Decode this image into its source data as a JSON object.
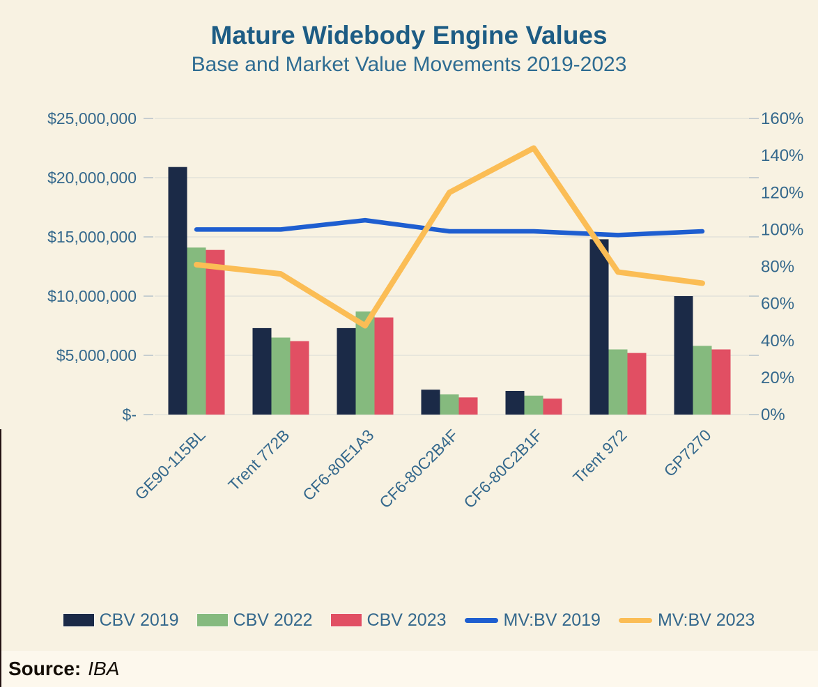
{
  "header": {
    "title": "Mature Widebody Engine Values",
    "subtitle": "Base and Market Value Movements 2019-2023"
  },
  "source": {
    "label": "Source:",
    "value": "IBA"
  },
  "colors": {
    "background": "#f8f2e2",
    "source_strip": "#fdf8ed",
    "title": "#1d5c84",
    "axis_text": "#34688c",
    "gridline": "#e3e2da",
    "cbv_2019": "#1b2a47",
    "cbv_2022": "#85ba7e",
    "cbv_2023": "#e14f63",
    "mvbv_2019": "#1e5ed0",
    "mvbv_2023": "#fbbd55"
  },
  "legend": {
    "items": [
      {
        "label": "CBV 2019",
        "swatch": "bar",
        "color": "#1b2a47"
      },
      {
        "label": "CBV 2022",
        "swatch": "bar",
        "color": "#85ba7e"
      },
      {
        "label": "CBV 2023",
        "swatch": "bar",
        "color": "#e14f63"
      },
      {
        "label": "MV:BV 2019",
        "swatch": "line",
        "color": "#1e5ed0"
      },
      {
        "label": "MV:BV 2023",
        "swatch": "line",
        "color": "#fbbd55"
      }
    ]
  },
  "chart_data": {
    "type": "bar",
    "subtype": "grouped-bars-with-lines",
    "title": "Mature Widebody Engine Values",
    "subtitle": "Base and Market Value Movements 2019-2023",
    "categories": [
      "GE90-115BL",
      "Trent 772B",
      "CF6-80E1A3",
      "CF6-80C2B4F",
      "CF6-80C2B1F",
      "Trent 972",
      "GP7270"
    ],
    "series": [
      {
        "name": "CBV 2019",
        "type": "bar",
        "axis": "left",
        "color": "#1b2a47",
        "values": [
          20900000,
          7300000,
          7300000,
          2100000,
          2000000,
          14800000,
          10000000
        ]
      },
      {
        "name": "CBV 2022",
        "type": "bar",
        "axis": "left",
        "color": "#85ba7e",
        "values": [
          14100000,
          6500000,
          8700000,
          1700000,
          1600000,
          5500000,
          5800000
        ]
      },
      {
        "name": "CBV 2023",
        "type": "bar",
        "axis": "left",
        "color": "#e14f63",
        "values": [
          13900000,
          6200000,
          8200000,
          1450000,
          1350000,
          5200000,
          5500000
        ]
      },
      {
        "name": "MV:BV 2019",
        "type": "line",
        "axis": "right",
        "color": "#1e5ed0",
        "values_pct": [
          100,
          100,
          105,
          99,
          99,
          97,
          99
        ]
      },
      {
        "name": "MV:BV 2023",
        "type": "line",
        "axis": "right",
        "color": "#fbbd55",
        "values_pct": [
          81,
          76,
          48,
          120,
          144,
          77,
          71
        ]
      }
    ],
    "left_axis": {
      "ticks": [
        "$-",
        "$5,000,000",
        "$10,000,000",
        "$15,000,000",
        "$20,000,000",
        "$25,000,000"
      ],
      "min": 0,
      "max": 25000000
    },
    "right_axis": {
      "ticks": [
        "0%",
        "20%",
        "40%",
        "60%",
        "80%",
        "100%",
        "120%",
        "140%",
        "160%"
      ],
      "min_pct": 0,
      "max_pct": 160
    },
    "grid": true,
    "legend_position": "bottom",
    "source": "IBA"
  }
}
